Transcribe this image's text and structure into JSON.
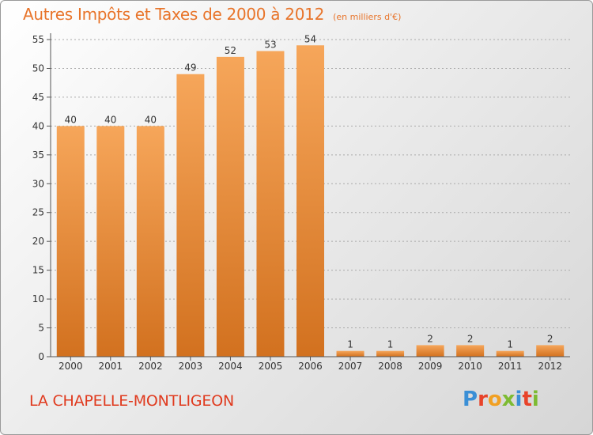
{
  "header": {
    "title": "Autres Impôts et Taxes de 2000 à 2012",
    "unit": "(en milliers d'€)"
  },
  "commune": "LA CHAPELLE-MONTLIGEON",
  "brand": {
    "name": "Proxiti",
    "letter_colors": [
      "#3a8fd6",
      "#e8432a",
      "#f1a022",
      "#7dbb32",
      "#3a8fd6",
      "#e8432a",
      "#7dbb32"
    ]
  },
  "colors": {
    "bar_top": "#f6a65a",
    "bar_bottom": "#d2711f",
    "axis": "#555555",
    "grid": "#aaaaaa",
    "label": "#333333"
  },
  "chart_data": {
    "type": "bar",
    "title": "Autres Impôts et Taxes de 2000 à 2012",
    "subtitle": "(en milliers d'€)",
    "categories": [
      "2000",
      "2001",
      "2002",
      "2003",
      "2004",
      "2005",
      "2006",
      "2007",
      "2008",
      "2009",
      "2010",
      "2011",
      "2012"
    ],
    "values": [
      40,
      40,
      40,
      49,
      52,
      53,
      54,
      1,
      1,
      2,
      2,
      1,
      2
    ],
    "data_labels": [
      "40",
      "40",
      "40",
      "49",
      "52",
      "53",
      "54",
      "1",
      "1",
      "2",
      "2",
      "1",
      "2"
    ],
    "y_ticks": [
      0,
      5,
      10,
      15,
      20,
      25,
      30,
      35,
      40,
      45,
      50,
      55
    ],
    "y_tick_labels": [
      "0",
      "5",
      "10",
      "15",
      "20",
      "25",
      "30",
      "35",
      "40",
      "45",
      "50",
      "55"
    ],
    "ylim": [
      0,
      55
    ],
    "xlabel": "",
    "ylabel": "",
    "grid": true,
    "legend": "none"
  }
}
